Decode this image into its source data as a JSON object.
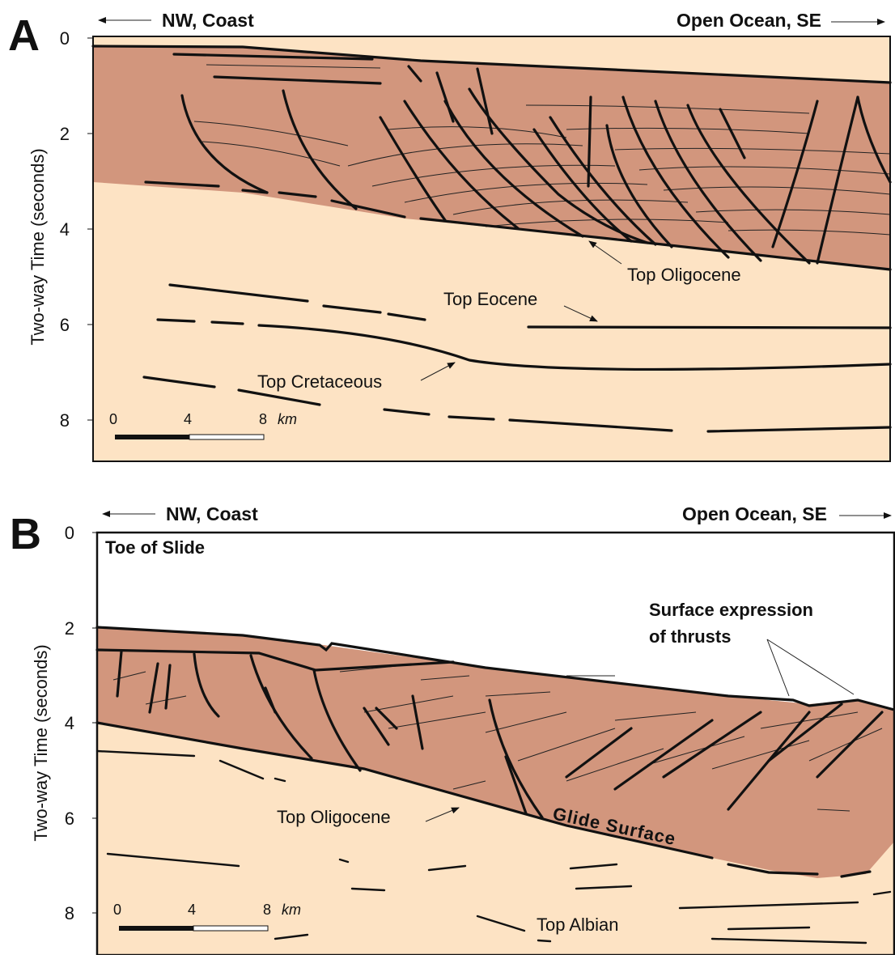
{
  "panels": [
    {
      "letter": "A",
      "left_direction": "NW, Coast",
      "right_direction": "Open Ocean, SE",
      "axis_label": "Two-way Time (seconds)",
      "yticks": [
        "0",
        "2",
        "4",
        "6",
        "8"
      ],
      "annotations": [
        "Top Oligocene",
        "Top Eocene",
        "Top Cretaceous"
      ],
      "scale": {
        "ticks": [
          "0",
          "4",
          "8"
        ],
        "unit": "km"
      }
    },
    {
      "letter": "B",
      "left_direction": "NW, Coast",
      "right_direction": "Open Ocean, SE",
      "axis_label": "Two-way Time (seconds)",
      "yticks": [
        "0",
        "2",
        "4",
        "6",
        "8"
      ],
      "annotations": [
        "Toe of Slide",
        "Surface expression",
        "of thrusts",
        "Top Oligocene",
        "Glide Surface",
        "Top Albian"
      ],
      "scale": {
        "ticks": [
          "0",
          "4",
          "8"
        ],
        "unit": "km"
      }
    }
  ]
}
